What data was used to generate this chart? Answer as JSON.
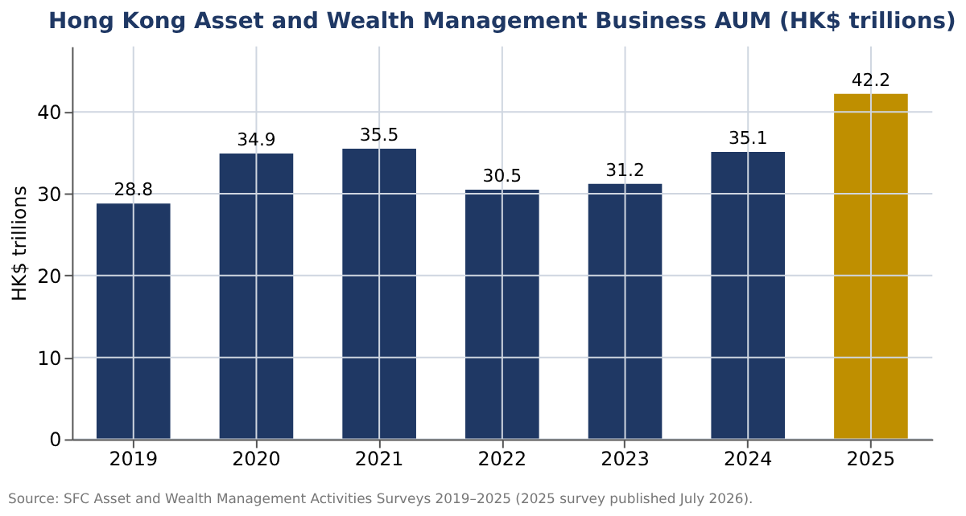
{
  "chart_data": {
    "type": "bar",
    "title": "Hong Kong Asset and Wealth Management Business AUM (HK$ trillions)",
    "ylabel": "HK$ trillions",
    "categories": [
      "2019",
      "2020",
      "2021",
      "2022",
      "2023",
      "2024",
      "2025"
    ],
    "values": [
      28.8,
      34.9,
      35.5,
      30.5,
      31.2,
      35.1,
      42.2
    ],
    "colors": [
      "#1f3864",
      "#1f3864",
      "#1f3864",
      "#1f3864",
      "#1f3864",
      "#1f3864",
      "#bf8f00"
    ],
    "ylim": [
      0,
      48
    ],
    "yticks": [
      0,
      10,
      20,
      30,
      40
    ],
    "grid": true,
    "data_labels": true,
    "annotations": [
      "Source: SFC Asset and Wealth Management Activities Surveys 2019–2025 (2025 survey published July 2026)."
    ]
  }
}
